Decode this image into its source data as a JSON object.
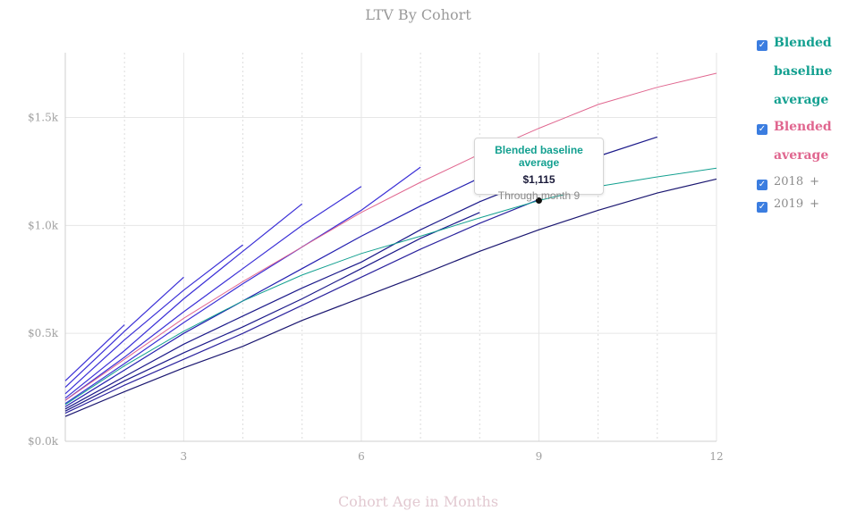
{
  "chart_data": {
    "type": "line",
    "title": "LTV By Cohort",
    "xlabel": "Cohort Age in Months",
    "ylabel": "",
    "xlim": [
      1,
      12
    ],
    "ylim": [
      0,
      1800
    ],
    "x_ticks": [
      3,
      6,
      9,
      12
    ],
    "x_tick_labels": [
      "3",
      "6",
      "9",
      "12"
    ],
    "y_ticks": [
      0,
      500,
      1000,
      1500
    ],
    "y_tick_labels": [
      "$0.0k",
      "$0.5k",
      "$1.0k",
      "$1.5k"
    ],
    "grid": true,
    "legend_position": "right",
    "series": [
      {
        "name": "Blended baseline average",
        "color": "#13a090",
        "x": [
          1,
          2,
          3,
          4,
          5,
          6,
          7,
          8,
          9,
          10,
          11,
          12
        ],
        "y": [
          170,
          350,
          510,
          650,
          770,
          870,
          950,
          1035,
          1115,
          1180,
          1225,
          1265
        ]
      },
      {
        "name": "Blended average",
        "color": "#e0668f",
        "x": [
          1,
          2,
          3,
          4,
          5,
          6,
          7,
          8,
          9,
          10,
          11,
          12
        ],
        "y": [
          190,
          380,
          570,
          740,
          900,
          1060,
          1200,
          1330,
          1450,
          1560,
          1640,
          1705
        ]
      },
      {
        "name": "",
        "color": "#3a2fd6",
        "x": [
          1,
          2
        ],
        "y": [
          280,
          540
        ]
      },
      {
        "name": "",
        "color": "#3a2fd6",
        "x": [
          1,
          2,
          3
        ],
        "y": [
          250,
          510,
          760
        ]
      },
      {
        "name": "",
        "color": "#3a2fd6",
        "x": [
          1,
          2,
          3,
          4
        ],
        "y": [
          220,
          470,
          700,
          910
        ]
      },
      {
        "name": "",
        "color": "#3a2fd6",
        "x": [
          1,
          2,
          3,
          4,
          5
        ],
        "y": [
          200,
          420,
          660,
          880,
          1100
        ]
      },
      {
        "name": "",
        "color": "#3a2fd6",
        "x": [
          1,
          2,
          3,
          4,
          5,
          6
        ],
        "y": [
          190,
          390,
          600,
          800,
          1000,
          1180
        ]
      },
      {
        "name": "",
        "color": "#3a2fd6",
        "x": [
          1,
          2,
          3,
          4,
          5,
          6,
          7
        ],
        "y": [
          175,
          360,
          550,
          730,
          900,
          1070,
          1270
        ]
      },
      {
        "name": "",
        "color": "#2420b0",
        "x": [
          1,
          2,
          3,
          4,
          5,
          6,
          7,
          8
        ],
        "y": [
          160,
          330,
          500,
          650,
          800,
          950,
          1090,
          1220
        ]
      },
      {
        "name": "",
        "color": "#1c1a8a",
        "x": [
          1,
          2,
          3,
          4,
          5,
          6,
          7,
          8,
          9,
          10,
          11
        ],
        "y": [
          150,
          300,
          450,
          580,
          710,
          830,
          980,
          1110,
          1220,
          1320,
          1410
        ]
      },
      {
        "name": "",
        "color": "#1c1a8a",
        "x": [
          1,
          2,
          3,
          4,
          5,
          6,
          7,
          8
        ],
        "y": [
          140,
          280,
          410,
          530,
          660,
          800,
          940,
          1060
        ]
      },
      {
        "name": "",
        "color": "#1a1670",
        "x": [
          1,
          2,
          3,
          4,
          5,
          6,
          7,
          8,
          9,
          10,
          11,
          12
        ],
        "y": [
          115,
          230,
          340,
          440,
          560,
          665,
          770,
          880,
          980,
          1070,
          1150,
          1215
        ]
      },
      {
        "name": "",
        "color": "#2b239e",
        "x": [
          1,
          2,
          3,
          4,
          5,
          6,
          7,
          8,
          9
        ],
        "y": [
          130,
          260,
          380,
          500,
          630,
          760,
          890,
          1010,
          1120
        ]
      }
    ],
    "highlight_point": {
      "series": "Blended baseline average",
      "x": 9,
      "y": 1115
    }
  },
  "tooltip": {
    "title": "Blended baseline average",
    "value": "$1,115",
    "subtitle": "Through month 9"
  },
  "legend": {
    "items": [
      {
        "label_lines": [
          "Blended",
          "baseline",
          "average"
        ],
        "color": "#13a090",
        "checked": true
      },
      {
        "label_lines": [
          "Blended",
          "average"
        ],
        "color": "#e0668f",
        "checked": true
      },
      {
        "label": "2018",
        "suffix": "+",
        "checked": true
      },
      {
        "label": "2019",
        "suffix": "+",
        "checked": true
      }
    ],
    "check_glyph": "✓"
  },
  "colors": {
    "grid": "#e6e6e6",
    "axis": "#cfcfcf"
  }
}
